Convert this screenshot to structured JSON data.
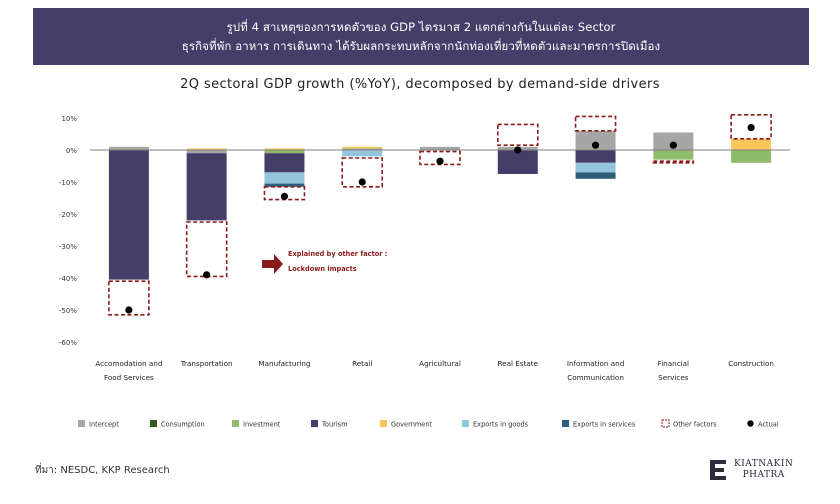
{
  "header": {
    "line1": "รูปที่ 4 สาเหตุของการหดตัวของ GDP ไตรมาส 2 แตกต่างกันในแต่ละ Sector",
    "line2": "ธุรกิจที่พัก อาหาร การเดินทาง ได้รับผลกระทบหลักจากนักท่องเที่ยวที่หดตัวและมาตรการปิดเมือง"
  },
  "source": "ที่มา: NESDC, KKP Research",
  "logo": {
    "line1": "KIATNAKIN",
    "line2": "PHATRA"
  },
  "annotation": {
    "line1": "Explained by other factor :",
    "line2": "Lockdown impacts"
  },
  "colors": {
    "Intercept": "#a6a6a6",
    "Consumption": "#385723",
    "Investment": "#8fbc6a",
    "Tourism": "#453e69",
    "Government": "#f9c75c",
    "Exports in goods": "#93c5dd",
    "Exports in services": "#2e5f7a",
    "Other factors": "#8b1a1a",
    "Actual": "#000000"
  },
  "chart_data": {
    "type": "bar",
    "stacked": true,
    "title": "2Q sectoral GDP growth (%YoY), decomposed by demand-side drivers",
    "ylim": [
      -60,
      10
    ],
    "yticks": [
      10,
      0,
      -10,
      -20,
      -30,
      -40,
      -50,
      -60
    ],
    "ytick_labels": [
      "10%",
      "0%",
      "-10%",
      "-20%",
      "-30%",
      "-40%",
      "-50%",
      "-60%"
    ],
    "categories": [
      [
        "Accomodation and",
        "Food Services"
      ],
      [
        "Transportation"
      ],
      [
        "Manufacturing"
      ],
      [
        "Retail"
      ],
      [
        "Agricultural"
      ],
      [
        "Real Estate"
      ],
      [
        "Information and",
        "Communication"
      ],
      [
        "Financial",
        "Services"
      ],
      [
        "Construction"
      ]
    ],
    "series": [
      {
        "name": "Intercept",
        "values": [
          1,
          -1,
          0,
          0.5,
          1,
          1,
          6,
          5.5,
          0
        ]
      },
      {
        "name": "Consumption",
        "values": [
          0,
          0,
          0,
          0,
          0,
          0,
          0,
          0,
          0
        ]
      },
      {
        "name": "Investment",
        "values": [
          0,
          0,
          -1,
          0,
          0,
          0,
          0,
          -3,
          -4
        ]
      },
      {
        "name": "Tourism",
        "values": [
          -40.5,
          -21,
          -6,
          0,
          0,
          -7.5,
          -4,
          0,
          0
        ]
      },
      {
        "name": "Government",
        "values": [
          0,
          0.5,
          0.5,
          0.5,
          0,
          0,
          0,
          0,
          3.5
        ]
      },
      {
        "name": "Exports in goods",
        "values": [
          0,
          0,
          -3.5,
          -2,
          0,
          0,
          -3,
          0,
          0
        ]
      },
      {
        "name": "Exports in services",
        "values": [
          0,
          0,
          -1,
          0,
          0,
          0,
          -2,
          0,
          0
        ]
      }
    ],
    "other_factors": [
      {
        "from": -41,
        "to": -51.5
      },
      {
        "from": -22.5,
        "to": -39.5
      },
      {
        "from": -11.5,
        "to": -15.5
      },
      {
        "from": -2.5,
        "to": -11.5
      },
      {
        "from": -0.5,
        "to": -4.5
      },
      {
        "from": 8,
        "to": 1.5
      },
      {
        "from": 10.5,
        "to": 6
      },
      {
        "from": -3.5,
        "to": -4
      },
      {
        "from": 11,
        "to": 3.5
      }
    ],
    "actual": [
      -50,
      -39,
      -14.5,
      -10,
      -3.5,
      0,
      1.5,
      1.5,
      7
    ],
    "legend_position": "bottom",
    "legend": [
      "Intercept",
      "Consumption",
      "Investment",
      "Tourism",
      "Government",
      "Exports in goods",
      "Exports in services",
      "Other factors",
      "Actual"
    ],
    "grid": false
  }
}
